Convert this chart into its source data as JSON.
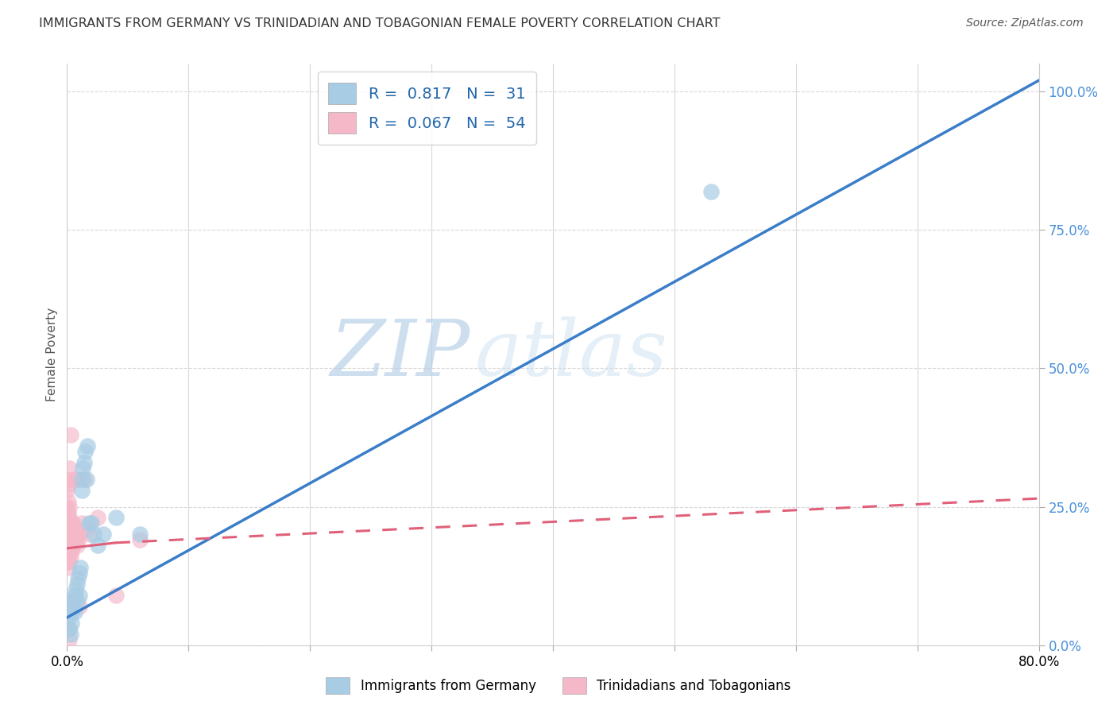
{
  "title": "IMMIGRANTS FROM GERMANY VS TRINIDADIAN AND TOBAGONIAN FEMALE POVERTY CORRELATION CHART",
  "source": "Source: ZipAtlas.com",
  "ylabel": "Female Poverty",
  "right_yticks": [
    "0.0%",
    "25.0%",
    "50.0%",
    "75.0%",
    "100.0%"
  ],
  "right_ytick_vals": [
    0.0,
    0.25,
    0.5,
    0.75,
    1.0
  ],
  "blue_color": "#a8cce4",
  "pink_color": "#f4b8c8",
  "blue_line_color": "#3a7dc9",
  "pink_line_color": "#e0607a",
  "blue_scatter": [
    [
      0.001,
      0.05
    ],
    [
      0.002,
      0.03
    ],
    [
      0.003,
      0.02
    ],
    [
      0.004,
      0.04
    ],
    [
      0.004,
      0.06
    ],
    [
      0.005,
      0.07
    ],
    [
      0.005,
      0.08
    ],
    [
      0.006,
      0.09
    ],
    [
      0.006,
      0.06
    ],
    [
      0.007,
      0.1
    ],
    [
      0.008,
      0.11
    ],
    [
      0.008,
      0.08
    ],
    [
      0.009,
      0.12
    ],
    [
      0.01,
      0.13
    ],
    [
      0.01,
      0.09
    ],
    [
      0.011,
      0.14
    ],
    [
      0.012,
      0.28
    ],
    [
      0.012,
      0.3
    ],
    [
      0.013,
      0.32
    ],
    [
      0.014,
      0.33
    ],
    [
      0.015,
      0.35
    ],
    [
      0.016,
      0.3
    ],
    [
      0.017,
      0.36
    ],
    [
      0.018,
      0.22
    ],
    [
      0.02,
      0.22
    ],
    [
      0.022,
      0.2
    ],
    [
      0.025,
      0.18
    ],
    [
      0.03,
      0.2
    ],
    [
      0.04,
      0.23
    ],
    [
      0.06,
      0.2
    ],
    [
      0.53,
      0.82
    ]
  ],
  "pink_scatter": [
    [
      0.0,
      0.15
    ],
    [
      0.0,
      0.17
    ],
    [
      0.0,
      0.19
    ],
    [
      0.0,
      0.21
    ],
    [
      0.0,
      0.25
    ],
    [
      0.0,
      0.28
    ],
    [
      0.0,
      0.3
    ],
    [
      0.001,
      0.14
    ],
    [
      0.001,
      0.16
    ],
    [
      0.001,
      0.18
    ],
    [
      0.001,
      0.2
    ],
    [
      0.001,
      0.22
    ],
    [
      0.001,
      0.24
    ],
    [
      0.001,
      0.26
    ],
    [
      0.001,
      0.29
    ],
    [
      0.002,
      0.15
    ],
    [
      0.002,
      0.17
    ],
    [
      0.002,
      0.19
    ],
    [
      0.002,
      0.21
    ],
    [
      0.002,
      0.23
    ],
    [
      0.002,
      0.25
    ],
    [
      0.002,
      0.32
    ],
    [
      0.003,
      0.16
    ],
    [
      0.003,
      0.18
    ],
    [
      0.003,
      0.2
    ],
    [
      0.003,
      0.22
    ],
    [
      0.003,
      0.38
    ],
    [
      0.004,
      0.17
    ],
    [
      0.004,
      0.19
    ],
    [
      0.004,
      0.22
    ],
    [
      0.005,
      0.18
    ],
    [
      0.005,
      0.2
    ],
    [
      0.005,
      0.22
    ],
    [
      0.006,
      0.19
    ],
    [
      0.006,
      0.21
    ],
    [
      0.006,
      0.3
    ],
    [
      0.007,
      0.2
    ],
    [
      0.008,
      0.18
    ],
    [
      0.008,
      0.3
    ],
    [
      0.009,
      0.19
    ],
    [
      0.01,
      0.2
    ],
    [
      0.012,
      0.22
    ],
    [
      0.014,
      0.3
    ],
    [
      0.016,
      0.21
    ],
    [
      0.018,
      0.2
    ],
    [
      0.025,
      0.23
    ],
    [
      0.04,
      0.09
    ],
    [
      0.06,
      0.19
    ],
    [
      0.002,
      0.01
    ],
    [
      0.001,
      0.06
    ],
    [
      0.0,
      0.08
    ],
    [
      0.003,
      0.08
    ],
    [
      0.01,
      0.07
    ],
    [
      0.002,
      0.03
    ]
  ],
  "xlim": [
    0.0,
    0.8
  ],
  "ylim": [
    0.0,
    1.05
  ],
  "blue_line": [
    [
      0.0,
      0.05
    ],
    [
      0.8,
      1.02
    ]
  ],
  "pink_line_solid": [
    [
      0.0,
      0.175
    ],
    [
      0.04,
      0.185
    ]
  ],
  "pink_line_dash": [
    [
      0.04,
      0.185
    ],
    [
      0.8,
      0.265
    ]
  ],
  "watermark_zip": "ZIP",
  "watermark_atlas": "atlas",
  "grid_color": "#d8d8d8",
  "background_color": "#ffffff"
}
